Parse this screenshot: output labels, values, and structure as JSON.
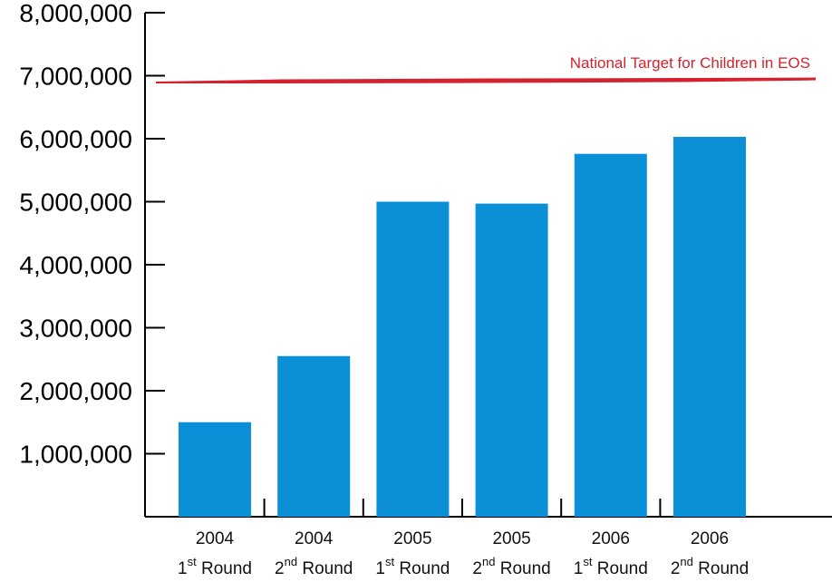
{
  "chart_data": {
    "type": "bar",
    "title": "",
    "xlabel": "",
    "ylabel": "",
    "ylim": [
      0,
      8000000
    ],
    "yticks": [
      1000000,
      2000000,
      3000000,
      4000000,
      5000000,
      6000000,
      7000000,
      8000000
    ],
    "ytick_labels": [
      "1,000,000",
      "2,000,000",
      "3,000,000",
      "4,000,000",
      "5,000,000",
      "6,000,000",
      "7,000,000",
      "8,000,000"
    ],
    "categories": [
      {
        "year": "2004",
        "ordinal": "1",
        "suffix": "st",
        "word": "Round"
      },
      {
        "year": "2004",
        "ordinal": "2",
        "suffix": "nd",
        "word": "Round"
      },
      {
        "year": "2005",
        "ordinal": "1",
        "suffix": "st",
        "word": "Round"
      },
      {
        "year": "2005",
        "ordinal": "2",
        "suffix": "nd",
        "word": "Round"
      },
      {
        "year": "2006",
        "ordinal": "1",
        "suffix": "st",
        "word": "Round"
      },
      {
        "year": "2006",
        "ordinal": "2",
        "suffix": "nd",
        "word": "Round"
      }
    ],
    "values": [
      1500000,
      2550000,
      5000000,
      4970000,
      5760000,
      6030000
    ],
    "bar_color": "#0b8fd6",
    "grid": false,
    "target": {
      "label": "National Target for Children in EOS",
      "value": 6920000,
      "color": "#d4232e"
    }
  }
}
